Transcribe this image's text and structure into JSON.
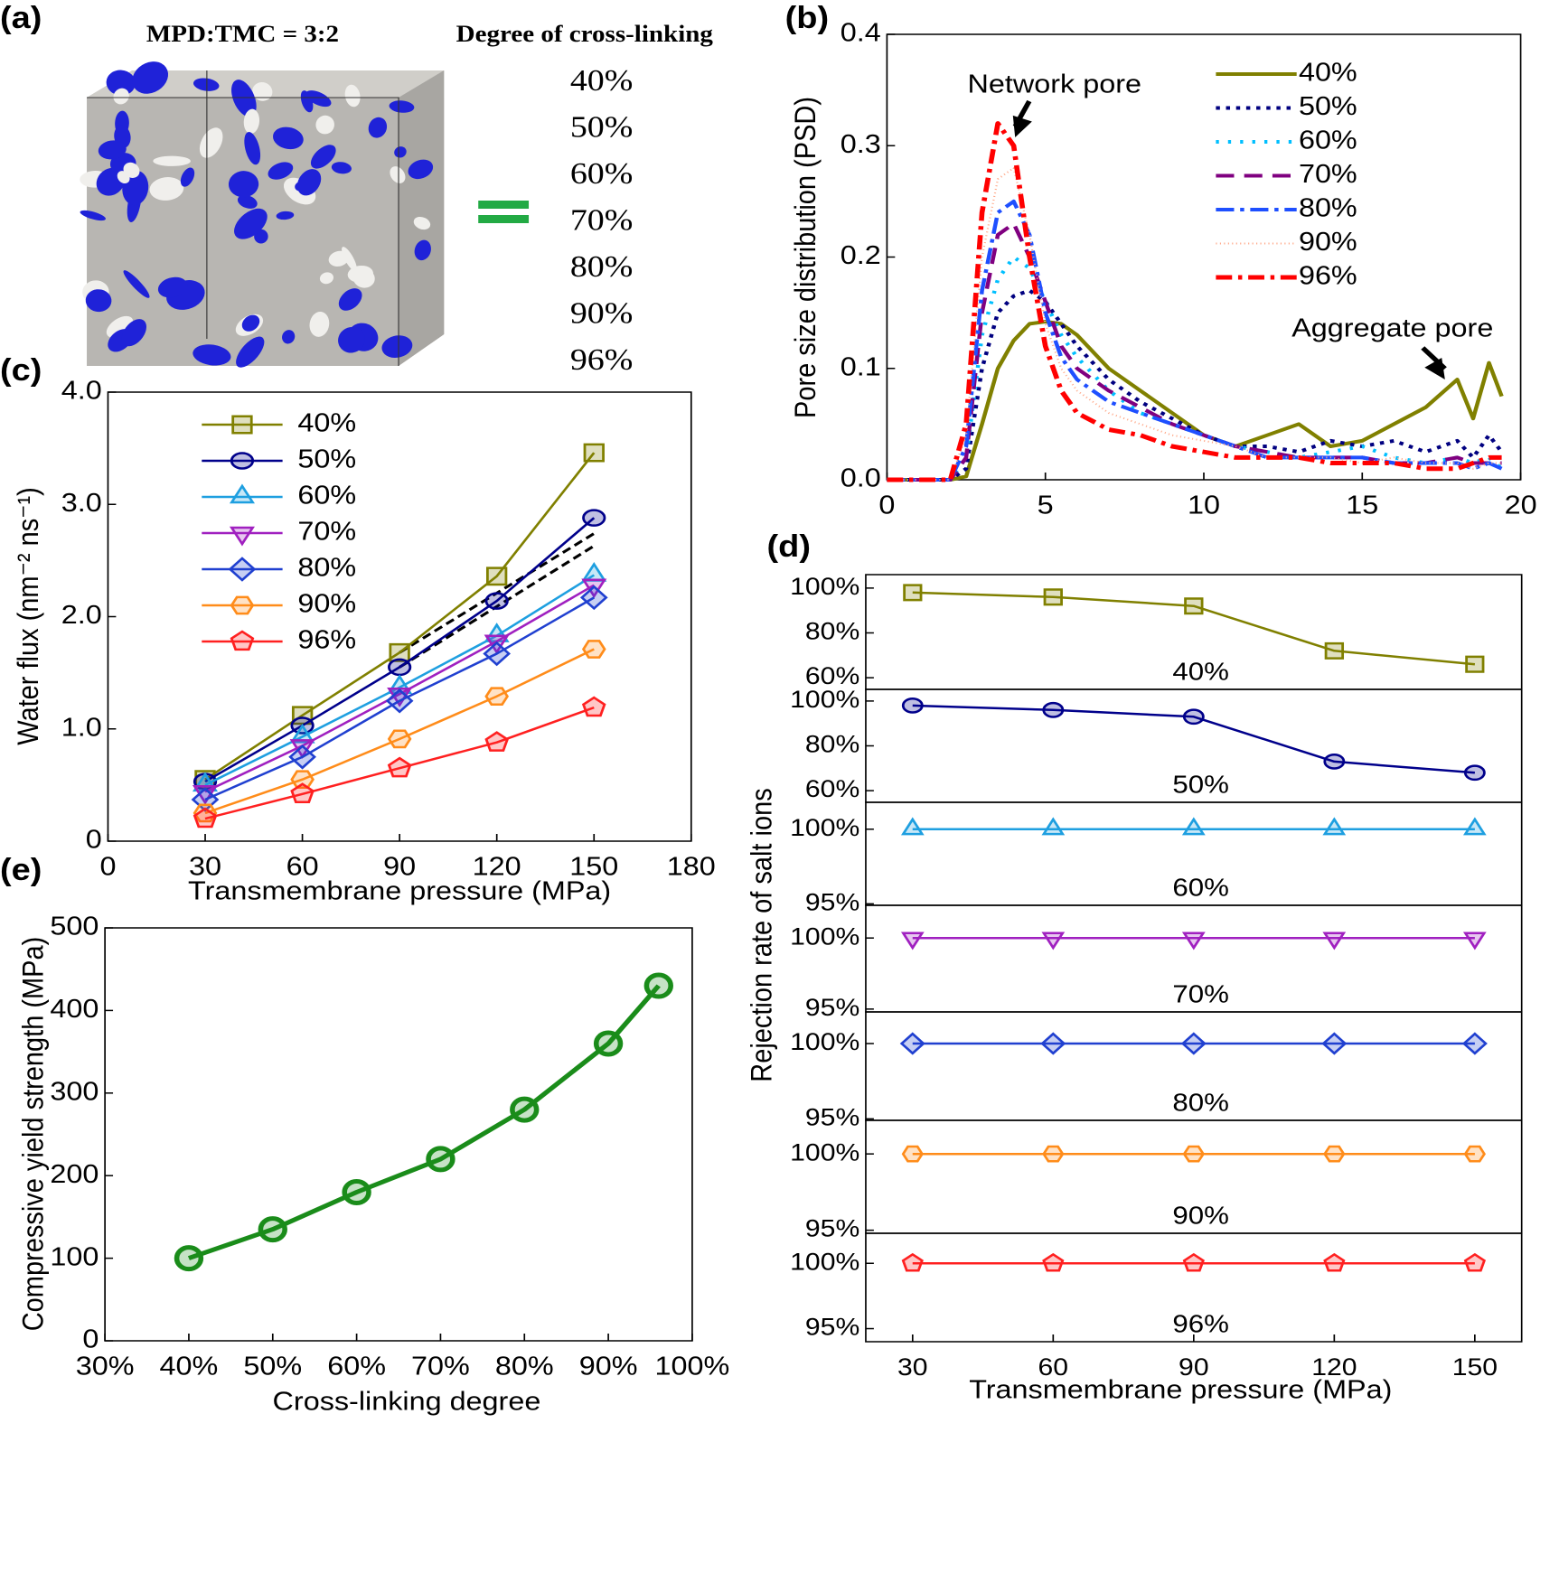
{
  "panel_a": {
    "label": "(a)",
    "title_left": "MPD:TMC = 3:2",
    "title_right": "Degree of cross-linking",
    "degrees": [
      "40%",
      "50%",
      "60%",
      "70%",
      "80%",
      "90%",
      "96%"
    ]
  },
  "chart_data": [
    {
      "type": "line",
      "label": "(b)",
      "ylabel": "Pore size distribution (PSD)",
      "x": [
        0,
        2,
        2.5,
        3,
        3.5,
        4,
        4.5,
        5,
        5.5,
        6,
        7,
        8,
        9,
        10,
        11,
        12,
        13,
        14,
        15,
        16,
        17,
        18,
        18.5,
        19,
        19.4
      ],
      "xlim": [
        0,
        20
      ],
      "ylim": [
        0,
        0.4
      ],
      "xticks": [
        0,
        5,
        10,
        15,
        20
      ],
      "yticks": [
        {
          "value": 0,
          "label": "0.0"
        },
        0.1,
        0.2,
        0.3,
        0.4
      ],
      "legend": "upper right",
      "annotations": [
        "Network pore",
        "Aggregate pore"
      ],
      "series": [
        {
          "name": "40%",
          "color": "#808000",
          "dash": "none",
          "width": 4,
          "values": [
            0,
            0,
            0.003,
            0.05,
            0.1,
            0.125,
            0.14,
            0.142,
            0.14,
            0.13,
            0.1,
            0.08,
            0.06,
            0.04,
            0.03,
            0.04,
            0.05,
            0.03,
            0.035,
            0.05,
            0.065,
            0.09,
            0.055,
            0.105,
            0.075
          ]
        },
        {
          "name": "50%",
          "color": "#000080",
          "dash": "4,6",
          "width": 4,
          "values": [
            0,
            0,
            0.01,
            0.1,
            0.15,
            0.165,
            0.17,
            0.16,
            0.14,
            0.12,
            0.09,
            0.07,
            0.055,
            0.04,
            0.03,
            0.03,
            0.025,
            0.035,
            0.03,
            0.035,
            0.025,
            0.035,
            0.02,
            0.04,
            0.025
          ]
        },
        {
          "name": "60%",
          "color": "#00bfff",
          "dash": "3,9",
          "width": 4,
          "values": [
            0,
            0,
            0.02,
            0.13,
            0.18,
            0.2,
            0.19,
            0.16,
            0.13,
            0.11,
            0.08,
            0.06,
            0.05,
            0.04,
            0.03,
            0.025,
            0.02,
            0.025,
            0.03,
            0.02,
            0.015,
            0.02,
            0.015,
            0.02,
            0.01
          ]
        },
        {
          "name": "70%",
          "color": "#800080",
          "dash": "18,10",
          "width": 4,
          "values": [
            0,
            0,
            0.02,
            0.15,
            0.22,
            0.23,
            0.2,
            0.16,
            0.12,
            0.1,
            0.08,
            0.065,
            0.05,
            0.04,
            0.03,
            0.025,
            0.02,
            0.02,
            0.02,
            0.015,
            0.015,
            0.02,
            0.015,
            0.015,
            0.015
          ]
        },
        {
          "name": "80%",
          "color": "#1e4fff",
          "dash": "18,6,4,6",
          "width": 4,
          "values": [
            0,
            0,
            0.03,
            0.17,
            0.24,
            0.25,
            0.22,
            0.15,
            0.11,
            0.09,
            0.07,
            0.06,
            0.05,
            0.04,
            0.03,
            0.02,
            0.02,
            0.02,
            0.02,
            0.015,
            0.015,
            0.015,
            0.01,
            0.015,
            0.01
          ]
        },
        {
          "name": "90%",
          "color": "#ffa888",
          "dash": "1,3",
          "width": 2,
          "values": [
            0,
            0,
            0.04,
            0.2,
            0.27,
            0.28,
            0.22,
            0.14,
            0.1,
            0.08,
            0.06,
            0.05,
            0.04,
            0.035,
            0.03,
            0.02,
            0.02,
            0.02,
            0.015,
            0.02,
            0.015,
            0.015,
            0.01,
            0.015,
            0.015
          ]
        },
        {
          "name": "96%",
          "color": "#ff0000",
          "dash": "16,6,4,6",
          "width": 5,
          "values": [
            0,
            0,
            0.05,
            0.24,
            0.32,
            0.3,
            0.2,
            0.12,
            0.08,
            0.06,
            0.045,
            0.04,
            0.03,
            0.025,
            0.02,
            0.02,
            0.02,
            0.015,
            0.015,
            0.015,
            0.01,
            0.01,
            0.015,
            0.02,
            0.02
          ]
        }
      ]
    },
    {
      "type": "line",
      "label": "(c)",
      "xlabel": "Transmembrane pressure (MPa)",
      "ylabel": "Water flux (nm⁻² ns⁻¹)",
      "x": [
        30,
        60,
        90,
        120,
        150
      ],
      "xlim": [
        0,
        180
      ],
      "ylim": [
        0,
        4
      ],
      "xticks": [
        0,
        30,
        60,
        90,
        120,
        150,
        180
      ],
      "yticks": [
        0,
        {
          "value": 1,
          "label": "1.0"
        },
        {
          "value": 2,
          "label": "2.0"
        },
        {
          "value": 3,
          "label": "3.0"
        },
        {
          "value": 4,
          "label": "4.0"
        }
      ],
      "legend": "upper left",
      "reference_lines": [
        {
          "color": "#000000",
          "x": [
            90,
            150
          ],
          "values": [
            1.68,
            2.74
          ]
        },
        {
          "color": "#000000",
          "x": [
            90,
            150
          ],
          "values": [
            1.55,
            2.63
          ]
        }
      ],
      "series": [
        {
          "name": "40%",
          "color": "#808000",
          "marker": "square",
          "values": [
            0.55,
            1.12,
            1.68,
            2.36,
            3.46
          ]
        },
        {
          "name": "50%",
          "color": "#00008b",
          "marker": "circle",
          "values": [
            0.53,
            1.03,
            1.55,
            2.14,
            2.88
          ]
        },
        {
          "name": "60%",
          "color": "#1e9fe0",
          "marker": "triangle-up",
          "values": [
            0.5,
            0.93,
            1.37,
            1.83,
            2.37
          ]
        },
        {
          "name": "70%",
          "color": "#a020c0",
          "marker": "triangle-down",
          "values": [
            0.44,
            0.85,
            1.31,
            1.78,
            2.28
          ]
        },
        {
          "name": "80%",
          "color": "#2040d0",
          "marker": "diamond",
          "values": [
            0.37,
            0.75,
            1.25,
            1.67,
            2.17
          ]
        },
        {
          "name": "90%",
          "color": "#ff8c1a",
          "marker": "hexagon",
          "values": [
            0.25,
            0.55,
            0.91,
            1.29,
            1.71
          ]
        },
        {
          "name": "96%",
          "color": "#ff2020",
          "marker": "pentagon",
          "values": [
            0.2,
            0.42,
            0.65,
            0.88,
            1.19
          ]
        }
      ]
    },
    {
      "type": "line",
      "label": "(d)",
      "ylabel": "Rejection rate of salt ions",
      "x": [
        30,
        60,
        90,
        120,
        150
      ],
      "xlim": [
        20,
        160
      ],
      "ylim": [
        54.8,
        106
      ],
      "yticks": [
        {
          "value": 60,
          "label": "60%"
        },
        {
          "value": 80,
          "label": "80%"
        },
        {
          "value": 100,
          "label": "100%"
        }
      ],
      "series": [
        {
          "name": "40%",
          "color": "#808000",
          "marker": "square",
          "values": [
            98,
            96,
            92,
            72,
            66
          ]
        }
      ]
    },
    {
      "type": "line",
      "x": [
        30,
        60,
        90,
        120,
        150
      ],
      "xlim": [
        20,
        160
      ],
      "ylim": [
        54.8,
        105.2
      ],
      "yticks": [
        {
          "value": 60,
          "label": "60%"
        },
        {
          "value": 80,
          "label": "80%"
        },
        {
          "value": 100,
          "label": "100%"
        }
      ],
      "series": [
        {
          "name": "50%",
          "color": "#00008b",
          "marker": "circle",
          "values": [
            98,
            96,
            93,
            73,
            68
          ]
        }
      ]
    },
    {
      "type": "line",
      "x": [
        30,
        60,
        90,
        120,
        150
      ],
      "xlim": [
        20,
        160
      ],
      "ylim": [
        94.9,
        101.8
      ],
      "yticks": [
        {
          "value": 95,
          "label": "95%"
        },
        {
          "value": 100,
          "label": "100%"
        }
      ],
      "series": [
        {
          "name": "60%",
          "color": "#1e9fe0",
          "marker": "triangle-up",
          "values": [
            100,
            100,
            100,
            100,
            100
          ]
        }
      ]
    },
    {
      "type": "line",
      "x": [
        30,
        60,
        90,
        120,
        150
      ],
      "xlim": [
        20,
        160
      ],
      "ylim": [
        94.8,
        102.3
      ],
      "yticks": [
        {
          "value": 95,
          "label": "95%"
        },
        {
          "value": 100,
          "label": "100%"
        }
      ],
      "series": [
        {
          "name": "70%",
          "color": "#a020c0",
          "marker": "triangle-down",
          "values": [
            100,
            100,
            100,
            100,
            100
          ]
        }
      ]
    },
    {
      "type": "line",
      "x": [
        30,
        60,
        90,
        120,
        150
      ],
      "xlim": [
        20,
        160
      ],
      "ylim": [
        94.9,
        102.1
      ],
      "yticks": [
        {
          "value": 95,
          "label": "95%"
        },
        {
          "value": 100,
          "label": "100%"
        }
      ],
      "series": [
        {
          "name": "80%",
          "color": "#2040d0",
          "marker": "diamond",
          "values": [
            100,
            100,
            100,
            100,
            100
          ]
        }
      ]
    },
    {
      "type": "line",
      "x": [
        30,
        60,
        90,
        120,
        150
      ],
      "xlim": [
        20,
        160
      ],
      "ylim": [
        94.8,
        102.2
      ],
      "yticks": [
        {
          "value": 95,
          "label": "95%"
        },
        {
          "value": 100,
          "label": "100%"
        }
      ],
      "series": [
        {
          "name": "90%",
          "color": "#ff8c1a",
          "marker": "hexagon",
          "values": [
            100,
            100,
            100,
            100,
            100
          ]
        }
      ]
    },
    {
      "type": "line",
      "xlabel": "Transmembrane pressure (MPa)",
      "x": [
        30,
        60,
        90,
        120,
        150
      ],
      "xlim": [
        20,
        160
      ],
      "ylim": [
        94,
        102.3
      ],
      "xticks": [
        30,
        60,
        90,
        120,
        150
      ],
      "yticks": [
        {
          "value": 95,
          "label": "95%"
        },
        {
          "value": 100,
          "label": "100%"
        }
      ],
      "series": [
        {
          "name": "96%",
          "color": "#ff2020",
          "marker": "pentagon",
          "values": [
            100,
            100,
            100,
            100,
            100
          ]
        }
      ]
    },
    {
      "type": "line",
      "label": "(e)",
      "xlabel": "Cross-linking degree",
      "ylabel": "Compressive yield strength (MPa)",
      "x": [
        40,
        50,
        60,
        70,
        80,
        90,
        96
      ],
      "xlim": [
        30,
        100
      ],
      "ylim": [
        0,
        500
      ],
      "xticks": [
        {
          "value": 30,
          "label": "30%"
        },
        {
          "value": 40,
          "label": "40%"
        },
        {
          "value": 50,
          "label": "50%"
        },
        {
          "value": 60,
          "label": "60%"
        },
        {
          "value": 70,
          "label": "70%"
        },
        {
          "value": 80,
          "label": "80%"
        },
        {
          "value": 90,
          "label": "90%"
        },
        {
          "value": 100,
          "label": "100%"
        }
      ],
      "yticks": [
        0,
        100,
        200,
        300,
        400,
        500
      ],
      "series": [
        {
          "color": "#1a8c1a",
          "marker": "ring",
          "values": [
            100,
            135,
            180,
            220,
            280,
            360,
            430
          ]
        }
      ]
    }
  ]
}
